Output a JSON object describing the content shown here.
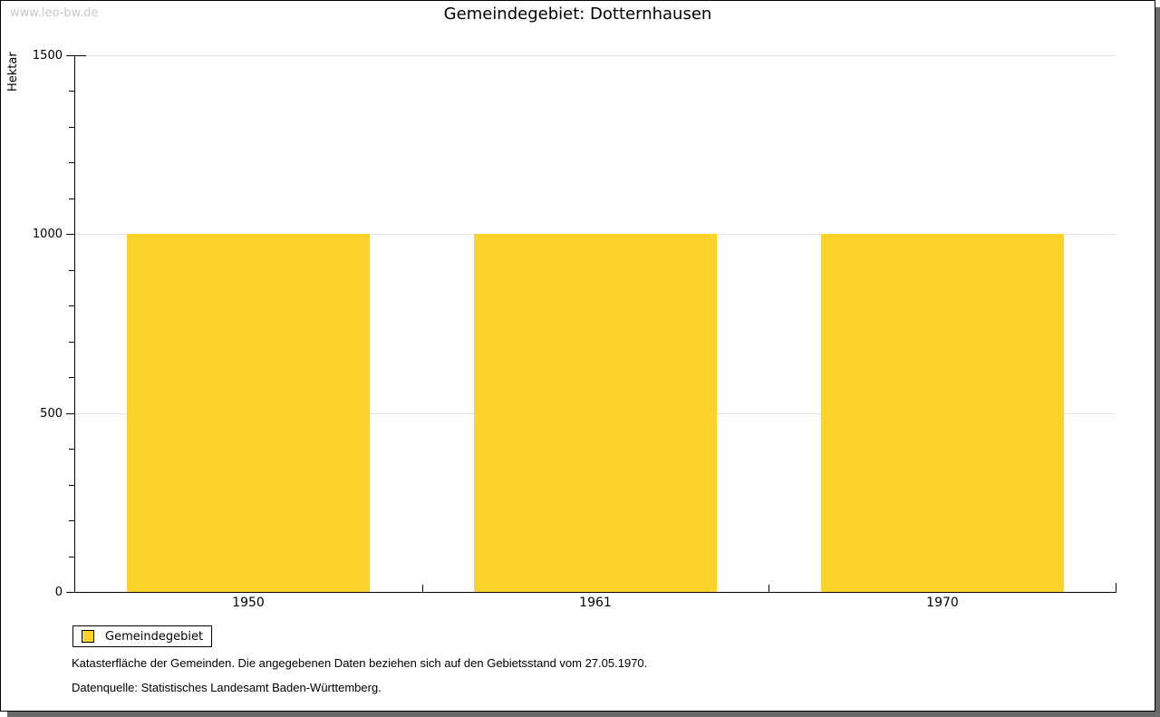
{
  "watermark": "www.leo-bw.de",
  "title": "Gemeindegebiet: Dotternhausen",
  "chart_data": {
    "type": "bar",
    "title": "Gemeindegebiet: Dotternhausen",
    "categories": [
      "1950",
      "1961",
      "1970"
    ],
    "values": [
      1000,
      1000,
      1000
    ],
    "xlabel": "",
    "ylabel": "Hektar",
    "ylim": [
      0,
      1500
    ],
    "ytick_major_step": 500,
    "ytick_minor_step": 100,
    "grid": true,
    "legend_position": "bottom-left",
    "series_name": "Gemeindegebiet",
    "bar_color": "#fcd32b"
  },
  "legend": {
    "label": "Gemeindegebiet",
    "swatch_color": "#fcd32b"
  },
  "footer": {
    "line1": "Katasterfläche der Gemeinden. Die angegebenen Daten beziehen sich auf den Gebietsstand vom 27.05.1970.",
    "line2": "Datenquelle: Statistisches Landesamt Baden-Württemberg."
  },
  "colors": {
    "bar": "#fcd32b",
    "gridline": "#e2e2e2",
    "axis": "#000000",
    "watermark": "#c8c8c8",
    "shadow": "#6a6a6a",
    "background": "#ffffff"
  }
}
